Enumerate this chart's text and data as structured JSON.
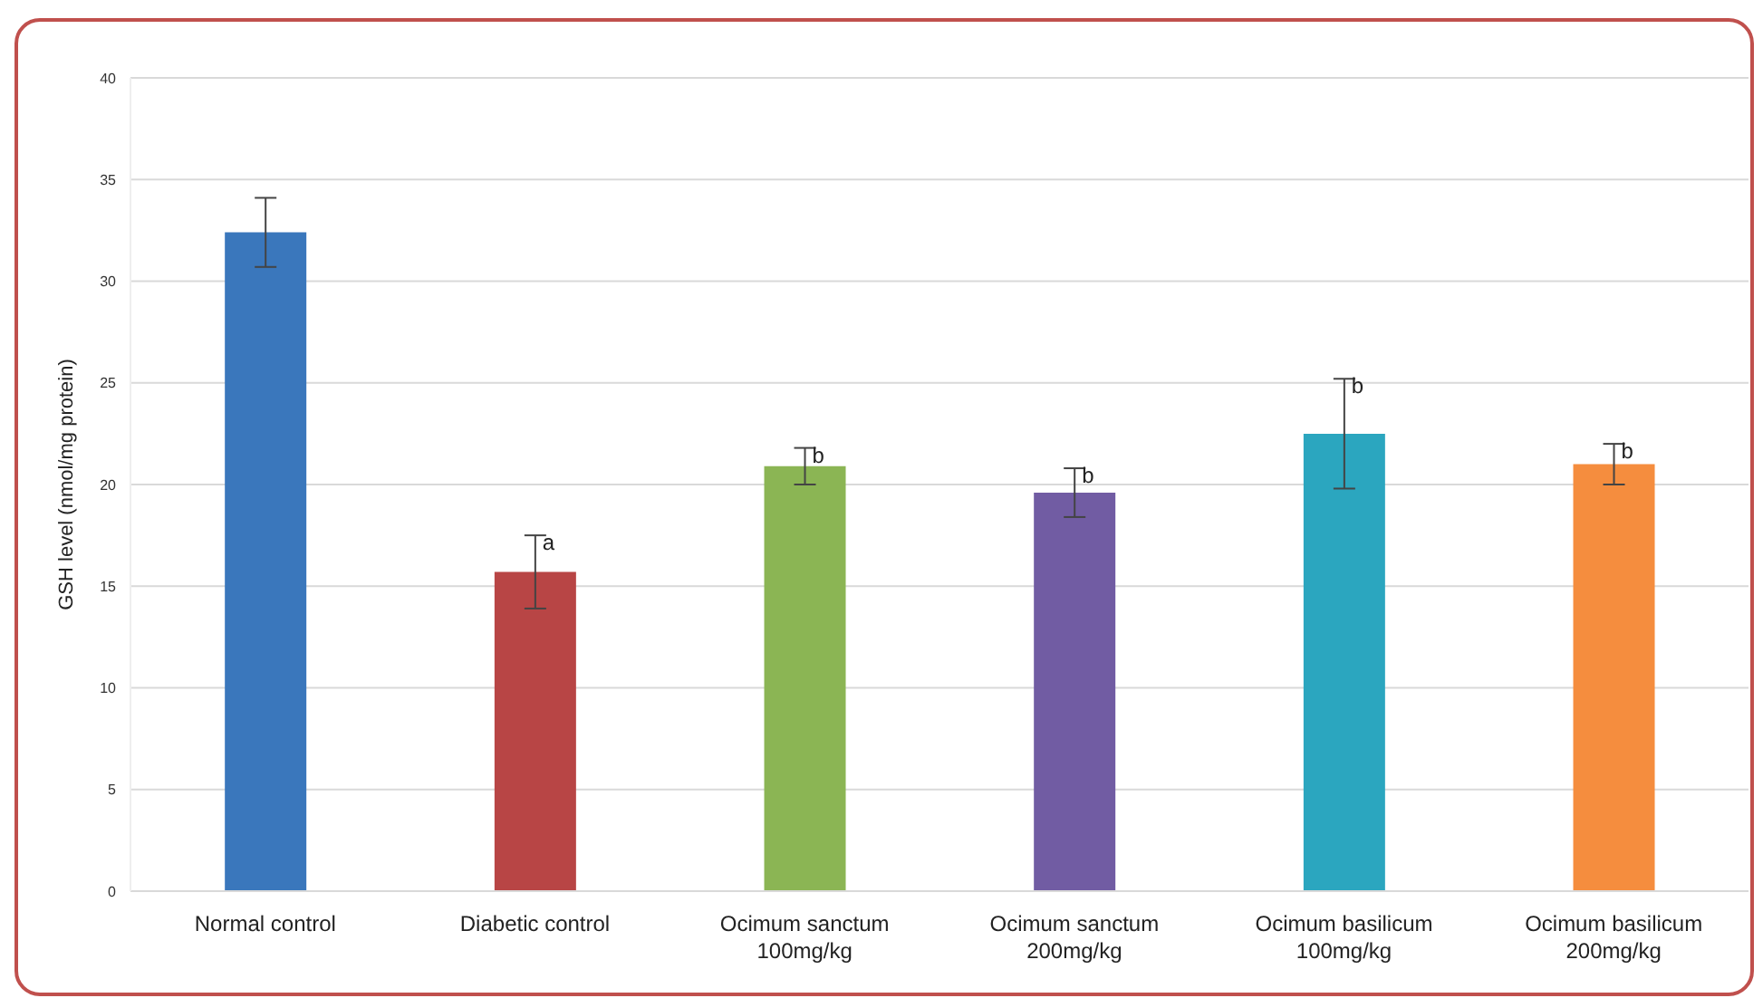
{
  "chart_data": {
    "type": "bar",
    "ylabel": "GSH level (nmol/mg protein)",
    "categories": [
      "Normal control",
      "Diabetic control",
      "Ocimum sanctum\n100mg/kg",
      "Ocimum sanctum\n200mg/kg",
      "Ocimum basilicum\n100mg/kg",
      "Ocimum basilicum\n200mg/kg"
    ],
    "values": [
      32.4,
      15.7,
      20.9,
      19.6,
      22.5,
      21.0
    ],
    "colors": [
      "#3a77bc",
      "#b84545",
      "#8bb554",
      "#715ca3",
      "#2ba6bf",
      "#f58d3e"
    ],
    "errors": [
      1.7,
      1.8,
      0.9,
      1.2,
      2.7,
      1.0
    ],
    "ylim": [
      0,
      40
    ],
    "yticks": [
      0,
      5,
      10,
      15,
      20,
      25,
      30,
      35,
      40
    ],
    "grid": "y",
    "annotations": [
      {
        "text": "a",
        "x": "Diabetic control",
        "y": 17.5
      },
      {
        "text": "b",
        "x": "Ocimum sanctum\n100mg/kg",
        "y": 21.8
      },
      {
        "text": "b",
        "x": "Ocimum sanctum\n200mg/kg",
        "y": 20.8
      },
      {
        "text": "b",
        "x": "Ocimum basilicum\n100mg/kg",
        "y": 25.2
      },
      {
        "text": "b",
        "x": "Ocimum basilicum\n200mg/kg",
        "y": 22.0
      }
    ]
  }
}
